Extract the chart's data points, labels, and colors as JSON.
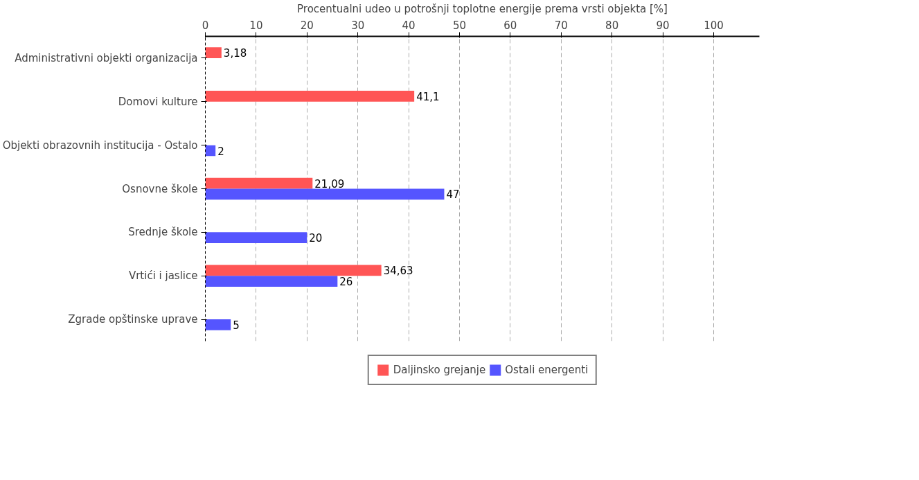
{
  "chart_data": {
    "type": "bar",
    "orientation": "horizontal",
    "xlabel": "Procentualni udeo u potrošnji toplotne energije prema vrsti objekta [%]",
    "categories": [
      "Administrativni objekti organizacija",
      "Domovi kulture",
      "Objekti obrazovnih institucija - Ostalo",
      "Osnovne škole",
      "Srednje škole",
      "Vrtići i jaslice",
      "Zgrade opštinske uprave"
    ],
    "series": [
      {
        "name": "Daljinsko grejanje",
        "color": "#ff5555",
        "values": [
          3.18,
          41.1,
          null,
          21.09,
          null,
          34.63,
          null
        ],
        "value_labels": [
          "3,18",
          "41,1",
          null,
          "21,09",
          null,
          "34,63",
          null
        ]
      },
      {
        "name": "Ostali energenti",
        "color": "#5555ff",
        "values": [
          null,
          null,
          2,
          47,
          20,
          26,
          5
        ],
        "value_labels": [
          null,
          null,
          "2",
          "47",
          "20",
          "26",
          "5"
        ]
      }
    ],
    "xlim": [
      0,
      109
    ],
    "xticks": [
      0,
      10,
      20,
      30,
      40,
      50,
      60,
      70,
      80,
      90,
      100
    ],
    "grid": "x",
    "legend": "bottom"
  }
}
